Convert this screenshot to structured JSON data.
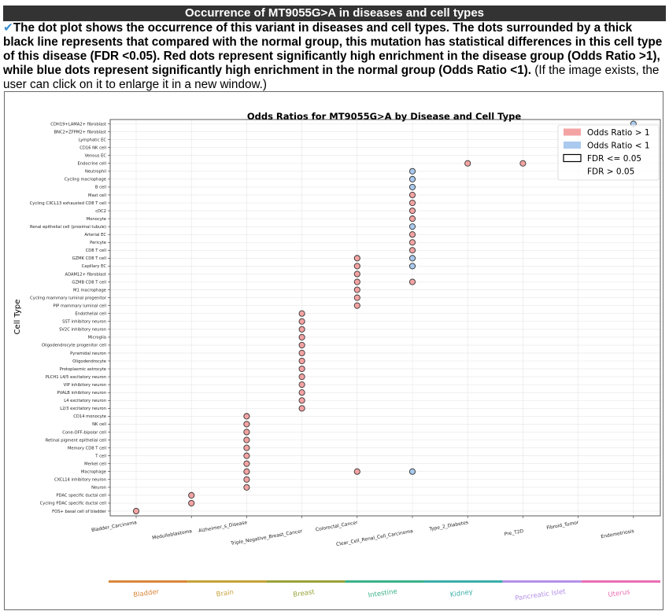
{
  "header": {
    "title": "Occurrence of MT9055G>A in diseases and cell types",
    "check_icon": "✔"
  },
  "description": {
    "bold_text": "The dot plot shows the occurrence of this variant in diseases and cell types. The dots surrounded by a thick black line represents that compared with the normal group, this mutation has statistical differences in this cell type of this disease (FDR <0.05). Red dots represent significantly high enrichment in the disease group (Odds Ratio >1), while blue dots represent significantly high enrichment in the normal group (Odds Ratio <1).",
    "normal_text": " (If the image exists, the user can click on it to enlarge it in a new window.)"
  },
  "colors": {
    "red_dot": "#f4a3a3",
    "blue_dot": "#a9c9ee",
    "header_bg": "#333333"
  },
  "chart_data": {
    "type": "scatter",
    "title": "Odds Ratios for MT9055G>A by Disease and Cell Type",
    "ylabel": "Cell Type",
    "xlabel": "",
    "cell_types": [
      "CDH19+LAMA2+ fibroblast",
      "BNC2+ZFPM2+ fibroblast",
      "Lymphatic EC",
      "CD16 NK cell",
      "Venous EC",
      "Endocrine cell",
      "Neutrophil",
      "Cycling macrophage",
      "B cell",
      "Mast cell",
      "Cycling CXCL13 exhausted CD8 T cell",
      "cDC2",
      "Monocyte",
      "Renal epithelial cell (proximal tubule)",
      "Arterial EC",
      "Pericyte",
      "CD8 T cell",
      "GZMK CD8 T cell",
      "Capillary EC",
      "ADAM12+ fibroblast",
      "GZMB CD8 T cell",
      "M1 macrophage",
      "Cycling mammary luminal progenitor",
      "PIP mammary luminal cell",
      "Endothelial cell",
      "SST inhibitory neuron",
      "SV2C inhibitory neuron",
      "Microglia",
      "Oligodendrocyte progenitor cell",
      "Pyramidal neuron",
      "Oligodendrocyte",
      "Protoplasmic astrocyte",
      "PLCH1 L4/5 excitatory neuron",
      "VIP inhibitory neuron",
      "PVALB inhibitory neuron",
      "L4 excitatory neuron",
      "L2/3 excitatory neuron",
      "CD14 monocyte",
      "NK cell",
      "Cone-OFF-bipolar cell",
      "Retinal pigment epithelial cell",
      "Memory CD8 T cell",
      "T cell",
      "Merkel cell",
      "Macrophage",
      "CXCL14 inhibitory neuron",
      "Neuron",
      "PDAC specific ductal cell",
      "Cycling PDAC specific ductal cell",
      "FOS+ basal cell of bladder"
    ],
    "diseases": [
      "Bladder_Carcinoma",
      "Medulloblastoma",
      "Alzheimer_s_Disease",
      "Triple_Negative_Breast_Cancer",
      "Colorectal_Cancer",
      "Clear_Cell_Renal_Cell_Carcinoma",
      "Type_2_Diabetes",
      "Pre_T2D",
      "Fibroid_Tumor",
      "Endometriosis"
    ],
    "points": [
      {
        "disease": 0,
        "cell": 49,
        "odds": "high"
      },
      {
        "disease": 1,
        "cell": 48,
        "odds": "high"
      },
      {
        "disease": 1,
        "cell": 47,
        "odds": "high"
      },
      {
        "disease": 2,
        "cell": 46,
        "odds": "high"
      },
      {
        "disease": 2,
        "cell": 45,
        "odds": "high"
      },
      {
        "disease": 2,
        "cell": 44,
        "odds": "high"
      },
      {
        "disease": 2,
        "cell": 43,
        "odds": "high"
      },
      {
        "disease": 2,
        "cell": 42,
        "odds": "high"
      },
      {
        "disease": 2,
        "cell": 41,
        "odds": "high"
      },
      {
        "disease": 2,
        "cell": 40,
        "odds": "high"
      },
      {
        "disease": 2,
        "cell": 39,
        "odds": "high"
      },
      {
        "disease": 2,
        "cell": 38,
        "odds": "high"
      },
      {
        "disease": 2,
        "cell": 37,
        "odds": "high"
      },
      {
        "disease": 3,
        "cell": 36,
        "odds": "high"
      },
      {
        "disease": 3,
        "cell": 35,
        "odds": "high"
      },
      {
        "disease": 3,
        "cell": 34,
        "odds": "high"
      },
      {
        "disease": 3,
        "cell": 33,
        "odds": "high"
      },
      {
        "disease": 3,
        "cell": 32,
        "odds": "high"
      },
      {
        "disease": 3,
        "cell": 31,
        "odds": "high"
      },
      {
        "disease": 3,
        "cell": 30,
        "odds": "high"
      },
      {
        "disease": 3,
        "cell": 29,
        "odds": "high"
      },
      {
        "disease": 3,
        "cell": 28,
        "odds": "high"
      },
      {
        "disease": 3,
        "cell": 27,
        "odds": "high"
      },
      {
        "disease": 3,
        "cell": 26,
        "odds": "high"
      },
      {
        "disease": 3,
        "cell": 25,
        "odds": "high"
      },
      {
        "disease": 3,
        "cell": 24,
        "odds": "high"
      },
      {
        "disease": 4,
        "cell": 23,
        "odds": "high"
      },
      {
        "disease": 4,
        "cell": 22,
        "odds": "high"
      },
      {
        "disease": 4,
        "cell": 21,
        "odds": "high"
      },
      {
        "disease": 4,
        "cell": 20,
        "odds": "high"
      },
      {
        "disease": 4,
        "cell": 19,
        "odds": "high"
      },
      {
        "disease": 4,
        "cell": 18,
        "odds": "high"
      },
      {
        "disease": 4,
        "cell": 17,
        "odds": "high"
      },
      {
        "disease": 4,
        "cell": 44,
        "odds": "high"
      },
      {
        "disease": 5,
        "cell": 6,
        "odds": "low"
      },
      {
        "disease": 5,
        "cell": 7,
        "odds": "low"
      },
      {
        "disease": 5,
        "cell": 8,
        "odds": "low"
      },
      {
        "disease": 5,
        "cell": 9,
        "odds": "high"
      },
      {
        "disease": 5,
        "cell": 10,
        "odds": "high"
      },
      {
        "disease": 5,
        "cell": 11,
        "odds": "high"
      },
      {
        "disease": 5,
        "cell": 12,
        "odds": "high"
      },
      {
        "disease": 5,
        "cell": 13,
        "odds": "low"
      },
      {
        "disease": 5,
        "cell": 14,
        "odds": "high"
      },
      {
        "disease": 5,
        "cell": 15,
        "odds": "high"
      },
      {
        "disease": 5,
        "cell": 16,
        "odds": "high"
      },
      {
        "disease": 5,
        "cell": 17,
        "odds": "low"
      },
      {
        "disease": 5,
        "cell": 18,
        "odds": "low"
      },
      {
        "disease": 5,
        "cell": 20,
        "odds": "high"
      },
      {
        "disease": 5,
        "cell": 44,
        "odds": "low"
      },
      {
        "disease": 6,
        "cell": 5,
        "odds": "high"
      },
      {
        "disease": 7,
        "cell": 5,
        "odds": "high"
      },
      {
        "disease": 9,
        "cell": 0,
        "odds": "low"
      }
    ],
    "legend": {
      "position": "top-right",
      "entries": [
        "Odds Ratio > 1",
        "Odds Ratio < 1",
        "FDR <= 0.05",
        "FDR > 0.05"
      ]
    },
    "tissues": [
      {
        "name": "Bladder",
        "color": "#d8873a"
      },
      {
        "name": "Brain",
        "color": "#c7a23a"
      },
      {
        "name": "Breast",
        "color": "#9aa33a"
      },
      {
        "name": "Intestine",
        "color": "#3ab18a"
      },
      {
        "name": "Kidney",
        "color": "#3aaea8"
      },
      {
        "name": "Pancreatic Islet",
        "color": "#b490e8"
      },
      {
        "name": "Uterus",
        "color": "#ea6fb3"
      }
    ],
    "grid": true
  }
}
